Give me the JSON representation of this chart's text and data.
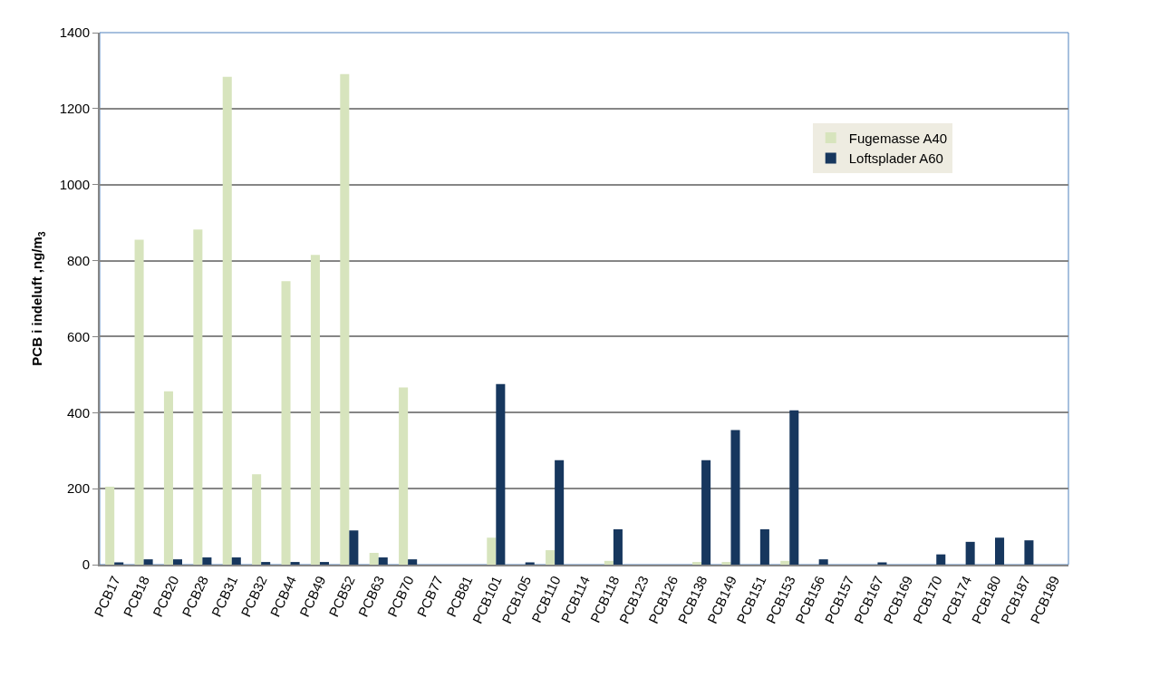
{
  "chart_data": {
    "type": "bar",
    "ylabel": "PCB i indeluft ,ng/m$_{3}$",
    "categories": [
      "PCB17",
      "PCB18",
      "PCB20",
      "PCB28",
      "PCB31",
      "PCB32",
      "PCB44",
      "PCB49",
      "PCB52",
      "PCB63",
      "PCB70",
      "PCB77",
      "PCB81",
      "PCB101",
      "PCB105",
      "PCB110",
      "PCB114",
      "PCB118",
      "PCB123",
      "PCB126",
      "PCB138",
      "PCB149",
      "PCB151",
      "PCB153",
      "PCB156",
      "PCB157",
      "PCB167",
      "PCB169",
      "PCB170",
      "PCB174",
      "PCB180",
      "PCB187",
      "PCB189"
    ],
    "series": [
      {
        "name": "Fugemasse A40",
        "color": "#d7e4bd",
        "values": [
          205,
          855,
          456,
          882,
          1284,
          238,
          746,
          815,
          1291,
          31,
          466,
          0,
          0,
          71,
          0,
          38,
          0,
          10,
          0,
          0,
          7,
          7,
          0,
          10,
          0,
          0,
          0,
          0,
          0,
          0,
          0,
          0,
          0
        ]
      },
      {
        "name": "Loftsplader A60",
        "color": "#17375e",
        "values": [
          6,
          14,
          14,
          19,
          19,
          7,
          7,
          7,
          90,
          19,
          14,
          0,
          0,
          475,
          6,
          275,
          0,
          93,
          0,
          0,
          275,
          354,
          93,
          406,
          14,
          0,
          6,
          0,
          27,
          60,
          71,
          64,
          0
        ]
      }
    ],
    "ylim": [
      0,
      1400
    ],
    "yticks": [
      0,
      200,
      400,
      600,
      800,
      1000,
      1200,
      1400
    ],
    "grid": "y",
    "legend": "top right"
  }
}
